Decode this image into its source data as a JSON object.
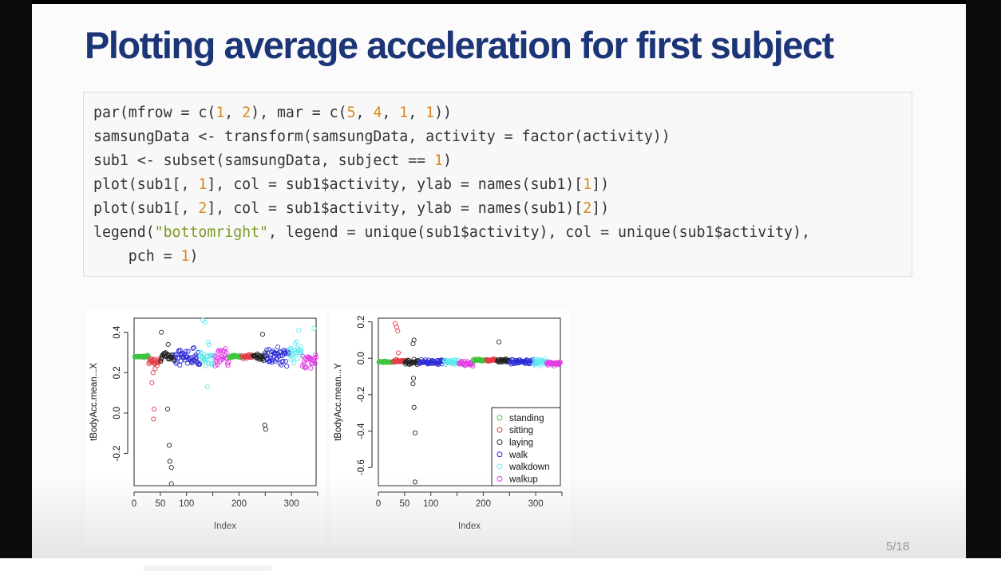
{
  "slide": {
    "title": "Plotting average acceleration for first subject",
    "page_number": "5/18"
  },
  "code": {
    "lines": [
      [
        {
          "t": "par(mfrow = c("
        },
        {
          "t": "1",
          "c": "num"
        },
        {
          "t": ", "
        },
        {
          "t": "2",
          "c": "num"
        },
        {
          "t": "), mar = c("
        },
        {
          "t": "5",
          "c": "num"
        },
        {
          "t": ", "
        },
        {
          "t": "4",
          "c": "num"
        },
        {
          "t": ", "
        },
        {
          "t": "1",
          "c": "num"
        },
        {
          "t": ", "
        },
        {
          "t": "1",
          "c": "num"
        },
        {
          "t": "))"
        }
      ],
      [
        {
          "t": "samsungData <- transform(samsungData, activity = factor(activity))"
        }
      ],
      [
        {
          "t": "sub1 <- subset(samsungData, subject == "
        },
        {
          "t": "1",
          "c": "num"
        },
        {
          "t": ")"
        }
      ],
      [
        {
          "t": "plot(sub1[, "
        },
        {
          "t": "1",
          "c": "num"
        },
        {
          "t": "], col = sub1$activity, ylab = names(sub1)["
        },
        {
          "t": "1",
          "c": "num"
        },
        {
          "t": "])"
        }
      ],
      [
        {
          "t": "plot(sub1[, "
        },
        {
          "t": "2",
          "c": "num"
        },
        {
          "t": "], col = sub1$activity, ylab = names(sub1)["
        },
        {
          "t": "2",
          "c": "num"
        },
        {
          "t": "])"
        }
      ],
      [
        {
          "t": "legend("
        },
        {
          "t": "\"bottomright\"",
          "c": "str"
        },
        {
          "t": ", legend = unique(sub1$activity), col = unique(sub1$activity),"
        }
      ],
      [
        {
          "t": "    pch = "
        },
        {
          "t": "1",
          "c": "num"
        },
        {
          "t": ")"
        }
      ]
    ]
  },
  "colors": {
    "title": "#1c3577",
    "number_literal": "#d8881e",
    "string_literal": "#7a9a1f",
    "standing": "#3ec43e",
    "sitting": "#e23a48",
    "laying": "#222222",
    "walk": "#2d2dd6",
    "walkdown": "#5ee8f0",
    "walkup": "#e23ae2"
  },
  "chart_data": [
    {
      "type": "scatter",
      "xlabel": "Index",
      "ylabel": "tBodyAcc.mean...X",
      "xlim": [
        0,
        347
      ],
      "ylim": [
        -0.36,
        0.47
      ],
      "xticks": [
        0,
        50,
        100,
        150,
        200,
        250,
        300,
        350
      ],
      "xtick_labels": [
        "0",
        "50",
        "100",
        "",
        "200",
        "",
        "300",
        ""
      ],
      "yticks": [
        -0.2,
        0.0,
        0.2,
        0.4
      ],
      "ytick_labels": [
        "-0.2",
        "0.0",
        "0.2",
        "0.4"
      ],
      "grid": false,
      "legend": null,
      "segments": [
        {
          "activity": "standing",
          "from": 1,
          "to": 27,
          "mean": 0.28,
          "spread": 0.008
        },
        {
          "activity": "sitting",
          "from": 28,
          "to": 50,
          "mean": 0.26,
          "spread": 0.03
        },
        {
          "activity": "laying",
          "from": 51,
          "to": 77,
          "mean": 0.28,
          "spread": 0.03
        },
        {
          "activity": "walk",
          "from": 78,
          "to": 125,
          "mean": 0.28,
          "spread": 0.06
        },
        {
          "activity": "walkdown",
          "from": 126,
          "to": 153,
          "mean": 0.28,
          "spread": 0.09
        },
        {
          "activity": "walkup",
          "from": 154,
          "to": 180,
          "mean": 0.28,
          "spread": 0.07
        },
        {
          "activity": "standing",
          "from": 181,
          "to": 205,
          "mean": 0.28,
          "spread": 0.01
        },
        {
          "activity": "sitting",
          "from": 206,
          "to": 226,
          "mean": 0.28,
          "spread": 0.015
        },
        {
          "activity": "laying",
          "from": 227,
          "to": 250,
          "mean": 0.28,
          "spread": 0.03
        },
        {
          "activity": "walk",
          "from": 251,
          "to": 295,
          "mean": 0.28,
          "spread": 0.06
        },
        {
          "activity": "walkdown",
          "from": 296,
          "to": 320,
          "mean": 0.3,
          "spread": 0.08
        },
        {
          "activity": "walkup",
          "from": 321,
          "to": 347,
          "mean": 0.26,
          "spread": 0.05
        }
      ],
      "outliers": [
        {
          "x": 34,
          "y": 0.15,
          "activity": "sitting"
        },
        {
          "x": 36,
          "y": 0.2,
          "activity": "sitting"
        },
        {
          "x": 38,
          "y": 0.02,
          "activity": "sitting"
        },
        {
          "x": 37,
          "y": -0.03,
          "activity": "sitting"
        },
        {
          "x": 40,
          "y": 0.22,
          "activity": "sitting"
        },
        {
          "x": 52,
          "y": 0.4,
          "activity": "laying"
        },
        {
          "x": 65,
          "y": 0.34,
          "activity": "laying"
        },
        {
          "x": 64,
          "y": 0.02,
          "activity": "laying"
        },
        {
          "x": 67,
          "y": -0.16,
          "activity": "laying"
        },
        {
          "x": 68,
          "y": -0.24,
          "activity": "laying"
        },
        {
          "x": 71,
          "y": -0.27,
          "activity": "laying"
        },
        {
          "x": 71,
          "y": -0.35,
          "activity": "laying"
        },
        {
          "x": 131,
          "y": 0.46,
          "activity": "walkdown"
        },
        {
          "x": 135,
          "y": 0.45,
          "activity": "walkdown"
        },
        {
          "x": 140,
          "y": 0.13,
          "activity": "walkdown"
        },
        {
          "x": 245,
          "y": 0.39,
          "activity": "laying"
        },
        {
          "x": 249,
          "y": -0.06,
          "activity": "laying"
        },
        {
          "x": 251,
          "y": -0.08,
          "activity": "laying"
        },
        {
          "x": 314,
          "y": 0.41,
          "activity": "walkdown"
        },
        {
          "x": 343,
          "y": 0.42,
          "activity": "walkdown"
        }
      ]
    },
    {
      "type": "scatter",
      "xlabel": "Index",
      "ylabel": "tBodyAcc.mean...Y",
      "xlim": [
        0,
        347
      ],
      "ylim": [
        -0.7,
        0.22
      ],
      "xticks": [
        0,
        50,
        100,
        150,
        200,
        250,
        300,
        350
      ],
      "xtick_labels": [
        "0",
        "50",
        "100",
        "",
        "200",
        "",
        "300",
        ""
      ],
      "yticks": [
        -0.6,
        -0.4,
        -0.2,
        0.0,
        0.2
      ],
      "ytick_labels": [
        "-0.6",
        "-0.4",
        "-0.2",
        "0.0",
        "0.2"
      ],
      "grid": false,
      "legend": {
        "position": "bottomright",
        "entries": [
          "standing",
          "sitting",
          "laying",
          "walk",
          "walkdown",
          "walkup"
        ]
      },
      "segments": [
        {
          "activity": "standing",
          "from": 1,
          "to": 27,
          "mean": -0.02,
          "spread": 0.006
        },
        {
          "activity": "sitting",
          "from": 28,
          "to": 50,
          "mean": -0.015,
          "spread": 0.01
        },
        {
          "activity": "laying",
          "from": 51,
          "to": 77,
          "mean": -0.02,
          "spread": 0.02
        },
        {
          "activity": "walk",
          "from": 78,
          "to": 125,
          "mean": -0.02,
          "spread": 0.02
        },
        {
          "activity": "walkdown",
          "from": 126,
          "to": 153,
          "mean": -0.02,
          "spread": 0.02
        },
        {
          "activity": "walkup",
          "from": 154,
          "to": 180,
          "mean": -0.03,
          "spread": 0.02
        },
        {
          "activity": "standing",
          "from": 181,
          "to": 205,
          "mean": -0.01,
          "spread": 0.01
        },
        {
          "activity": "sitting",
          "from": 206,
          "to": 226,
          "mean": -0.01,
          "spread": 0.01
        },
        {
          "activity": "laying",
          "from": 227,
          "to": 250,
          "mean": -0.01,
          "spread": 0.02
        },
        {
          "activity": "walk",
          "from": 251,
          "to": 295,
          "mean": -0.02,
          "spread": 0.02
        },
        {
          "activity": "walkdown",
          "from": 296,
          "to": 320,
          "mean": -0.02,
          "spread": 0.025
        },
        {
          "activity": "walkup",
          "from": 321,
          "to": 347,
          "mean": -0.03,
          "spread": 0.02
        }
      ],
      "outliers": [
        {
          "x": 32,
          "y": 0.19,
          "activity": "sitting"
        },
        {
          "x": 35,
          "y": 0.17,
          "activity": "sitting"
        },
        {
          "x": 37,
          "y": 0.15,
          "activity": "sitting"
        },
        {
          "x": 38,
          "y": 0.03,
          "activity": "sitting"
        },
        {
          "x": 68,
          "y": 0.1,
          "activity": "laying"
        },
        {
          "x": 66,
          "y": 0.08,
          "activity": "laying"
        },
        {
          "x": 67,
          "y": -0.11,
          "activity": "laying"
        },
        {
          "x": 66,
          "y": -0.14,
          "activity": "laying"
        },
        {
          "x": 68,
          "y": -0.27,
          "activity": "laying"
        },
        {
          "x": 70,
          "y": -0.41,
          "activity": "laying"
        },
        {
          "x": 70,
          "y": -0.68,
          "activity": "laying"
        },
        {
          "x": 230,
          "y": 0.09,
          "activity": "laying"
        }
      ]
    }
  ]
}
